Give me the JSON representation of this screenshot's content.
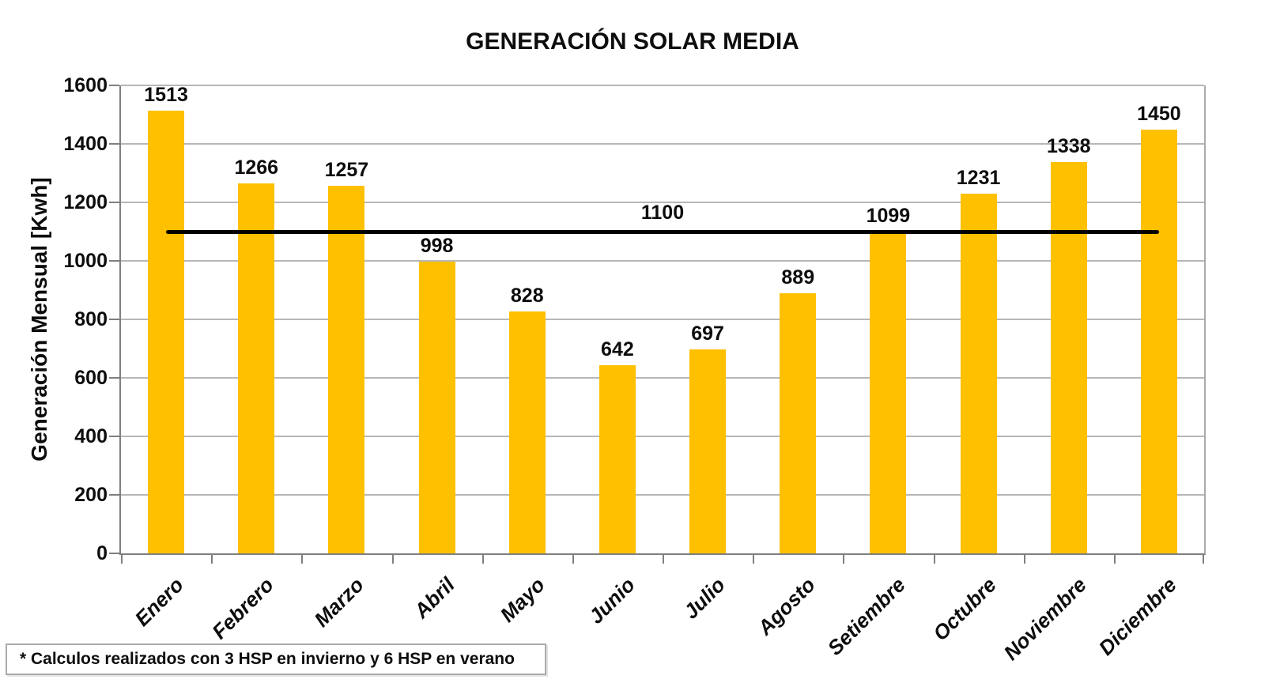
{
  "chart_data": {
    "type": "bar",
    "title": "GENERACIÓN SOLAR MEDIA",
    "ylabel": "Generación Mensual [Kwh]",
    "ylim": [
      0,
      1600
    ],
    "ytick_step": 200,
    "grid": true,
    "legend_position": "none",
    "categories": [
      "Enero",
      "Febrero",
      "Marzo",
      "Abril",
      "Mayo",
      "Junio",
      "Julio",
      "Agosto",
      "Setiembre",
      "Octubre",
      "Noviembre",
      "Diciembre"
    ],
    "series": [
      {
        "type": "bar",
        "color": "#FFC000",
        "values": [
          1513,
          1266,
          1257,
          998,
          828,
          642,
          697,
          889,
          1099,
          1231,
          1338,
          1450
        ]
      },
      {
        "type": "line",
        "color": "#000000",
        "constant_value": 1100,
        "label": "1100"
      }
    ]
  },
  "footnote": {
    "text": "* Calculos realizados con 3 HSP en invierno y 6 HSP en verano"
  },
  "colors": {
    "bar": "#FFC000",
    "reference_line": "#000000",
    "gridline": "#b7b7b7",
    "axis": "#7f7f7f",
    "text": "#0d0d0d"
  }
}
